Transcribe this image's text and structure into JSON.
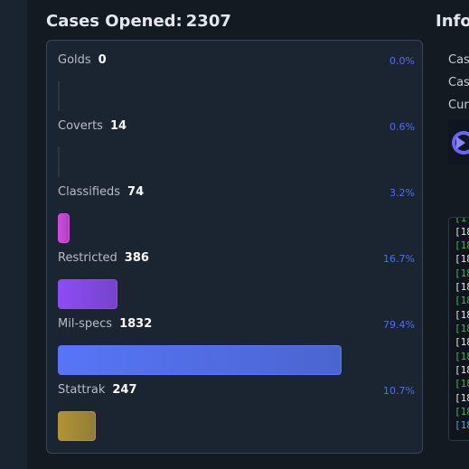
{
  "cases_panel": {
    "title_label": "Cases Opened:",
    "title_count": "2307",
    "rarities": [
      {
        "name": "Golds",
        "count": "0",
        "percent": "0.0%",
        "fraction": 0.0,
        "color": "#2b3747"
      },
      {
        "name": "Coverts",
        "count": "14",
        "percent": "0.6%",
        "fraction": 0.006,
        "color": "#2b3747"
      },
      {
        "name": "Classifieds",
        "count": "74",
        "percent": "3.2%",
        "fraction": 0.032,
        "color": "#d04be0"
      },
      {
        "name": "Restricted",
        "count": "386",
        "percent": "16.7%",
        "fraction": 0.167,
        "color": "#8c4cf5"
      },
      {
        "name": "Mil-specs",
        "count": "1832",
        "percent": "79.4%",
        "fraction": 0.794,
        "color": "#5775f7"
      },
      {
        "name": "Stattrak",
        "count": "247",
        "percent": "10.7%",
        "fraction": 0.107,
        "color": "#b19337"
      }
    ]
  },
  "info_panel": {
    "title": "Infor",
    "lines": [
      "Cas",
      "Cas",
      "Cur"
    ],
    "avatar_icon": "logo-icon",
    "log_lines": [
      {
        "text": "[1",
        "color": "#3fb950"
      },
      {
        "text": "[18",
        "color": "#e6e6e6"
      },
      {
        "text": "[18",
        "color": "#3fb950"
      },
      {
        "text": "[18",
        "color": "#e6e6e6"
      },
      {
        "text": "[18",
        "color": "#3fb950"
      },
      {
        "text": "[18",
        "color": "#e6e6e6"
      },
      {
        "text": "[18",
        "color": "#3fb950"
      },
      {
        "text": "[18",
        "color": "#e6e6e6"
      },
      {
        "text": "[18",
        "color": "#3fb950"
      },
      {
        "text": "[18",
        "color": "#e6e6e6"
      },
      {
        "text": "[18",
        "color": "#3fb950"
      },
      {
        "text": "[18",
        "color": "#e6e6e6"
      },
      {
        "text": "[18",
        "color": "#3fb950"
      },
      {
        "text": "[18",
        "color": "#e6e6e6"
      },
      {
        "text": "[18",
        "color": "#3fb950"
      },
      {
        "text": "[18",
        "color": "#3fa9f5"
      }
    ]
  }
}
